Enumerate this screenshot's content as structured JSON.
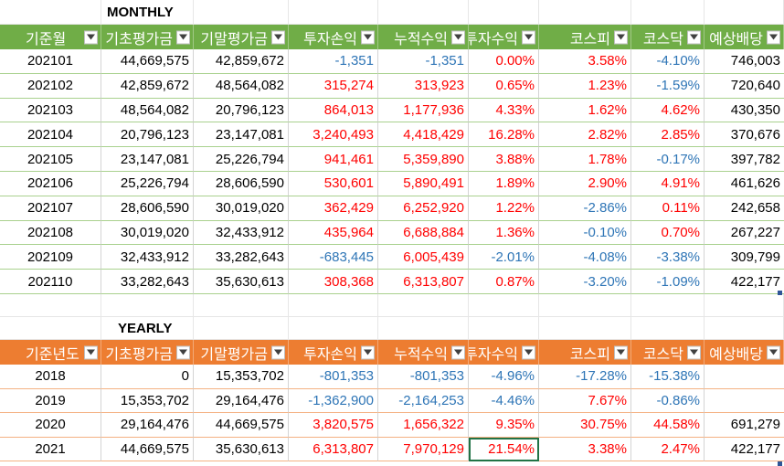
{
  "monthly": {
    "title": "MONTHLY",
    "headers": [
      "기준월",
      "기초평가금",
      "기말평가금",
      "투자손익",
      "누적수익",
      "투자수익",
      "코스피",
      "코스닥",
      "예상배당"
    ],
    "rows": [
      [
        "202101",
        "44,669,575",
        "42,859,672",
        "-1,351",
        "-1,351",
        "0.00%",
        "3.58%",
        "-4.10%",
        "746,003"
      ],
      [
        "202102",
        "42,859,672",
        "48,564,082",
        "315,274",
        "313,923",
        "0.65%",
        "1.23%",
        "-1.59%",
        "720,640"
      ],
      [
        "202103",
        "48,564,082",
        "20,796,123",
        "864,013",
        "1,177,936",
        "4.33%",
        "1.62%",
        "4.62%",
        "430,350"
      ],
      [
        "202104",
        "20,796,123",
        "23,147,081",
        "3,240,493",
        "4,418,429",
        "16.28%",
        "2.82%",
        "2.85%",
        "370,676"
      ],
      [
        "202105",
        "23,147,081",
        "25,226,794",
        "941,461",
        "5,359,890",
        "3.88%",
        "1.78%",
        "-0.17%",
        "397,782"
      ],
      [
        "202106",
        "25,226,794",
        "28,606,590",
        "530,601",
        "5,890,491",
        "1.89%",
        "2.90%",
        "4.91%",
        "461,626"
      ],
      [
        "202107",
        "28,606,590",
        "30,019,020",
        "362,429",
        "6,252,920",
        "1.22%",
        "-2.86%",
        "0.11%",
        "242,658"
      ],
      [
        "202108",
        "30,019,020",
        "32,433,912",
        "435,964",
        "6,688,884",
        "1.36%",
        "-0.10%",
        "0.70%",
        "267,227"
      ],
      [
        "202109",
        "32,433,912",
        "33,282,643",
        "-683,445",
        "6,005,439",
        "-2.01%",
        "-4.08%",
        "-3.38%",
        "309,799"
      ],
      [
        "202110",
        "33,282,643",
        "35,630,613",
        "308,368",
        "6,313,807",
        "0.87%",
        "-3.20%",
        "-1.09%",
        "422,177"
      ]
    ]
  },
  "yearly": {
    "title": "YEARLY",
    "headers": [
      "기준년도",
      "기초평가금",
      "기말평가금",
      "투자손익",
      "누적수익",
      "투자수익",
      "코스피",
      "코스닥",
      "예상배당"
    ],
    "rows": [
      [
        "2018",
        "0",
        "15,353,702",
        "-801,353",
        "-801,353",
        "-4.96%",
        "-17.28%",
        "-15.38%",
        ""
      ],
      [
        "2019",
        "15,353,702",
        "29,164,476",
        "-1,362,900",
        "-2,164,253",
        "-4.46%",
        "7.67%",
        "-0.86%",
        ""
      ],
      [
        "2020",
        "29,164,476",
        "44,669,575",
        "3,820,575",
        "1,656,322",
        "9.35%",
        "30.75%",
        "44.58%",
        "691,279"
      ],
      [
        "2021",
        "44,669,575",
        "35,630,613",
        "6,313,807",
        "7,970,129",
        "21.54%",
        "3.38%",
        "2.47%",
        "422,177"
      ]
    ]
  },
  "colors": {
    "monthly_header": "#70ad47",
    "yearly_header": "#ed7d31",
    "positive": "#ff0000",
    "negative": "#2e75b6"
  },
  "icons": {
    "filter": "dropdown-filter-icon"
  }
}
